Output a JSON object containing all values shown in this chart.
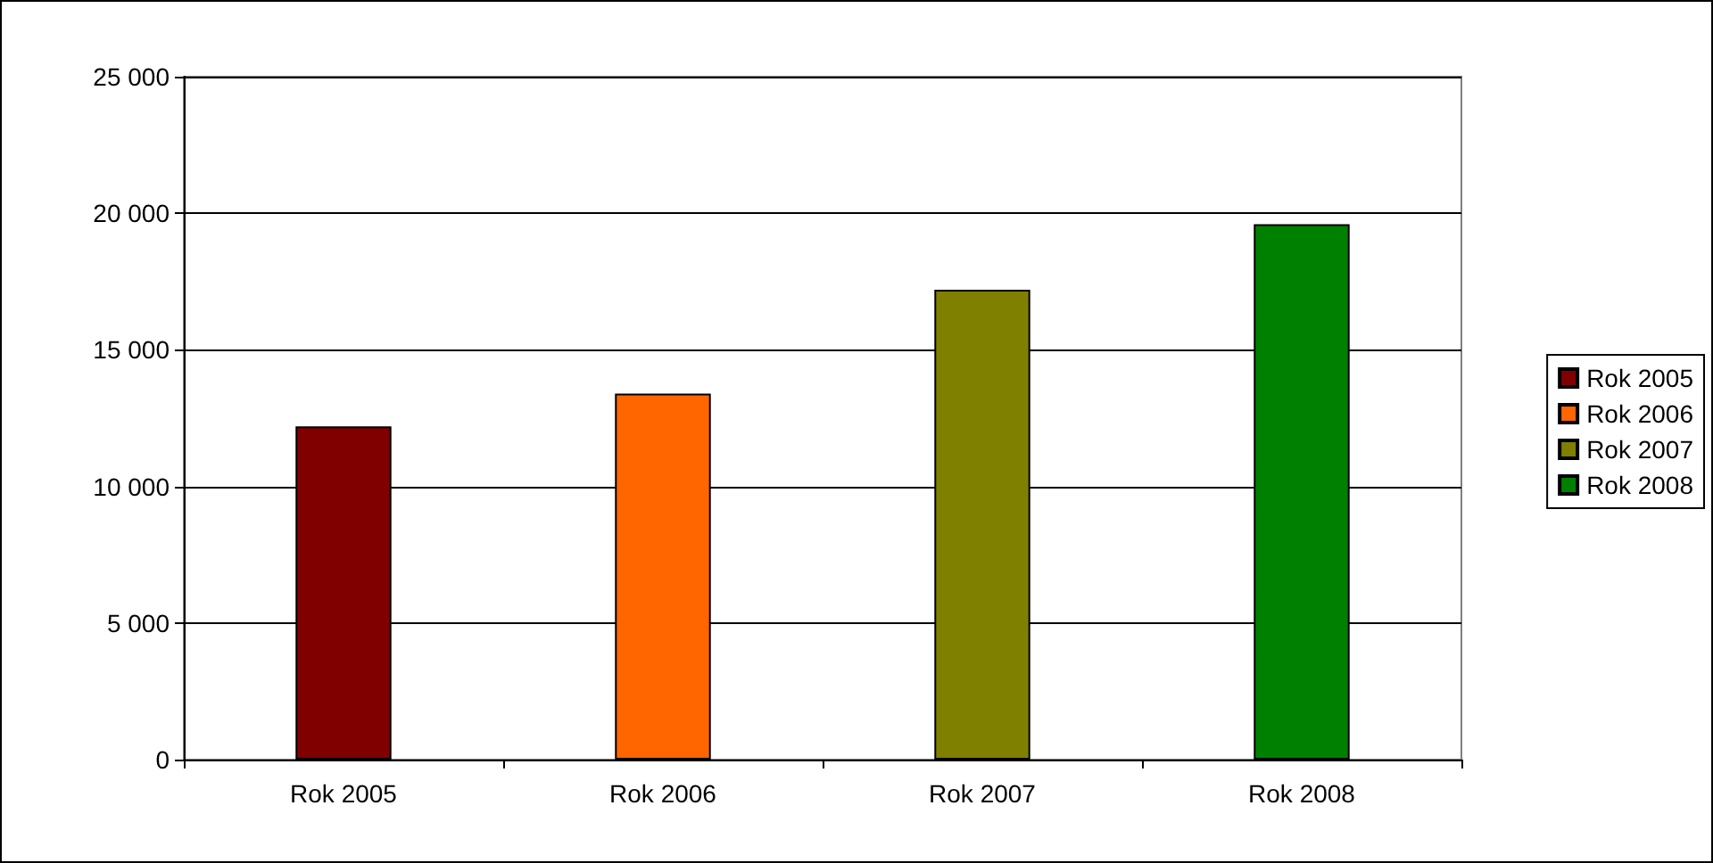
{
  "chart_data": {
    "type": "bar",
    "categories": [
      "Rok 2005",
      "Rok 2006",
      "Rok 2007",
      "Rok 2008"
    ],
    "series": [
      {
        "name": "Rok 2005",
        "color": "#800000",
        "values": [
          12200,
          null,
          null,
          null
        ]
      },
      {
        "name": "Rok 2006",
        "color": "#ff6600",
        "values": [
          null,
          13400,
          null,
          null
        ]
      },
      {
        "name": "Rok 2007",
        "color": "#808000",
        "values": [
          null,
          null,
          17200,
          null
        ]
      },
      {
        "name": "Rok 2008",
        "color": "#008000",
        "values": [
          null,
          null,
          null,
          19600
        ]
      }
    ],
    "ylim": [
      0,
      25000
    ],
    "yticks": [
      {
        "value": 0,
        "label": "0"
      },
      {
        "value": 5000,
        "label": "5 000"
      },
      {
        "value": 10000,
        "label": "10 000"
      },
      {
        "value": 15000,
        "label": "15 000"
      },
      {
        "value": 20000,
        "label": "20 000"
      },
      {
        "value": 25000,
        "label": "25 000"
      }
    ],
    "grid": "y",
    "legend": "right"
  }
}
